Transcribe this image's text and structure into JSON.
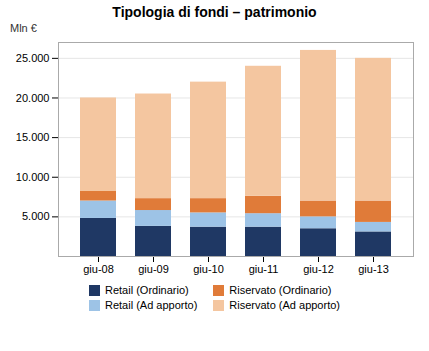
{
  "chart_data": {
    "type": "bar",
    "stacked": true,
    "title": "Tipologia di fondi – patrimonio",
    "ylabel": "Mln €",
    "categories": [
      "giu-08",
      "giu-09",
      "giu-10",
      "giu-11",
      "giu-12",
      "giu-13"
    ],
    "series": [
      {
        "name": "Retail (Ordinario)",
        "color": "#1f3864",
        "values": [
          4800,
          3800,
          3700,
          3700,
          3500,
          3100
        ]
      },
      {
        "name": "Retail (Ad apporto)",
        "color": "#9dc3e6",
        "values": [
          2200,
          2000,
          1800,
          1700,
          1500,
          1200
        ]
      },
      {
        "name": "Riservato (Ordinario)",
        "color": "#e07b39",
        "values": [
          1200,
          1500,
          1800,
          2200,
          2000,
          2700
        ]
      },
      {
        "name": "Riservato (Ad apporto)",
        "color": "#f4c6a0",
        "values": [
          11800,
          13200,
          14700,
          16400,
          19000,
          18000
        ]
      }
    ],
    "ylim": [
      0,
      27000
    ],
    "yticks": [
      {
        "value": 5000,
        "label": "5.000"
      },
      {
        "value": 10000,
        "label": "10.000"
      },
      {
        "value": 15000,
        "label": "15.000"
      },
      {
        "value": 20000,
        "label": "20.000"
      },
      {
        "value": 25000,
        "label": "25.000"
      }
    ],
    "grid": true,
    "legend": "bottom"
  }
}
